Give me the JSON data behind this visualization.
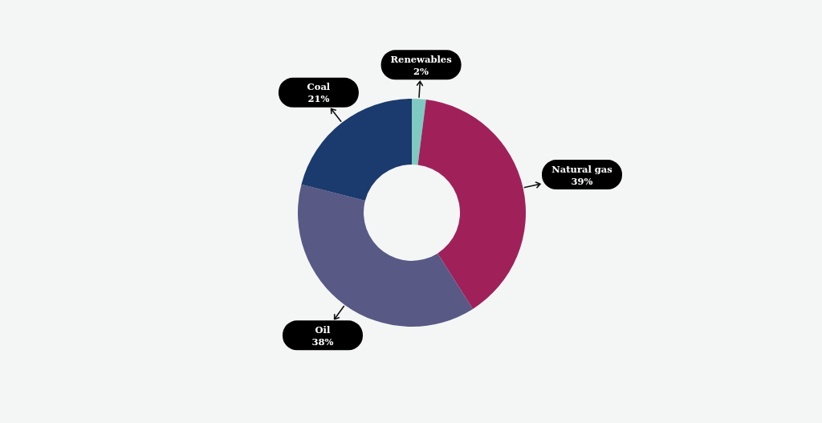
{
  "chart_data": {
    "type": "donut",
    "categories": [
      "Renewables",
      "Natural gas",
      "Oil",
      "Coal"
    ],
    "values": [
      2,
      39,
      38,
      21
    ],
    "value_labels": [
      "2%",
      "39%",
      "38%",
      "21%"
    ],
    "colors": [
      "#7ecac3",
      "#a0215a",
      "#585985",
      "#1b3a6d"
    ]
  }
}
